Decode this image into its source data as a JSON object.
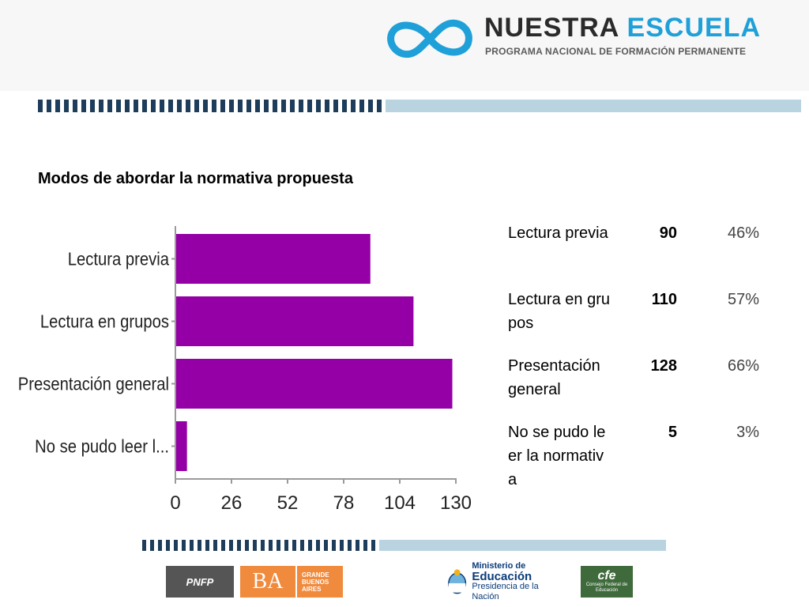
{
  "header": {
    "brand_part1": "NUESTRA",
    "brand_part2": "ESCUELA",
    "subtitle": "PROGRAMA NACIONAL DE FORMACIÓN PERMANENTE"
  },
  "slide": {
    "title": "Modos de abordar  la normativa propuesta"
  },
  "colors": {
    "bar": "#9400a6",
    "brand_blue": "#1fa0d8",
    "stripe_dark": "#1e3d5a",
    "stripe_light": "#b9d3e0"
  },
  "chart_data": {
    "type": "bar",
    "orientation": "horizontal",
    "categories": [
      "Lectura previa",
      "Lectura en grupos",
      "Presentación general",
      "No se pudo leer l..."
    ],
    "values": [
      90,
      110,
      128,
      5
    ],
    "xlim": [
      0,
      130
    ],
    "xticks": [
      "0",
      "26",
      "52",
      "78",
      "104",
      "130"
    ],
    "grid": false,
    "legend": "none"
  },
  "table": {
    "rows": [
      {
        "label": "Lectura previa",
        "count": "90",
        "percent": "46%"
      },
      {
        "label": "Lectura en grupos",
        "count": "110",
        "percent": "57%"
      },
      {
        "label": "Presentación general",
        "count": "128",
        "percent": "66%"
      },
      {
        "label": "No se pudo leer la normativa",
        "count": "5",
        "percent": "3%"
      }
    ]
  },
  "footer": {
    "pnfp": "PNFP",
    "pnfp_sub": "BUENOS AIRES",
    "ba": "BA",
    "gba": [
      "GRANDE",
      "BUENOS",
      "AIRES"
    ],
    "ministerio_1": "Ministerio de",
    "ministerio_2": "Educación",
    "ministerio_3": "Presidencia de la Nación",
    "cfe": "cfe",
    "cfe_sub": "Consejo Federal de Educación"
  }
}
